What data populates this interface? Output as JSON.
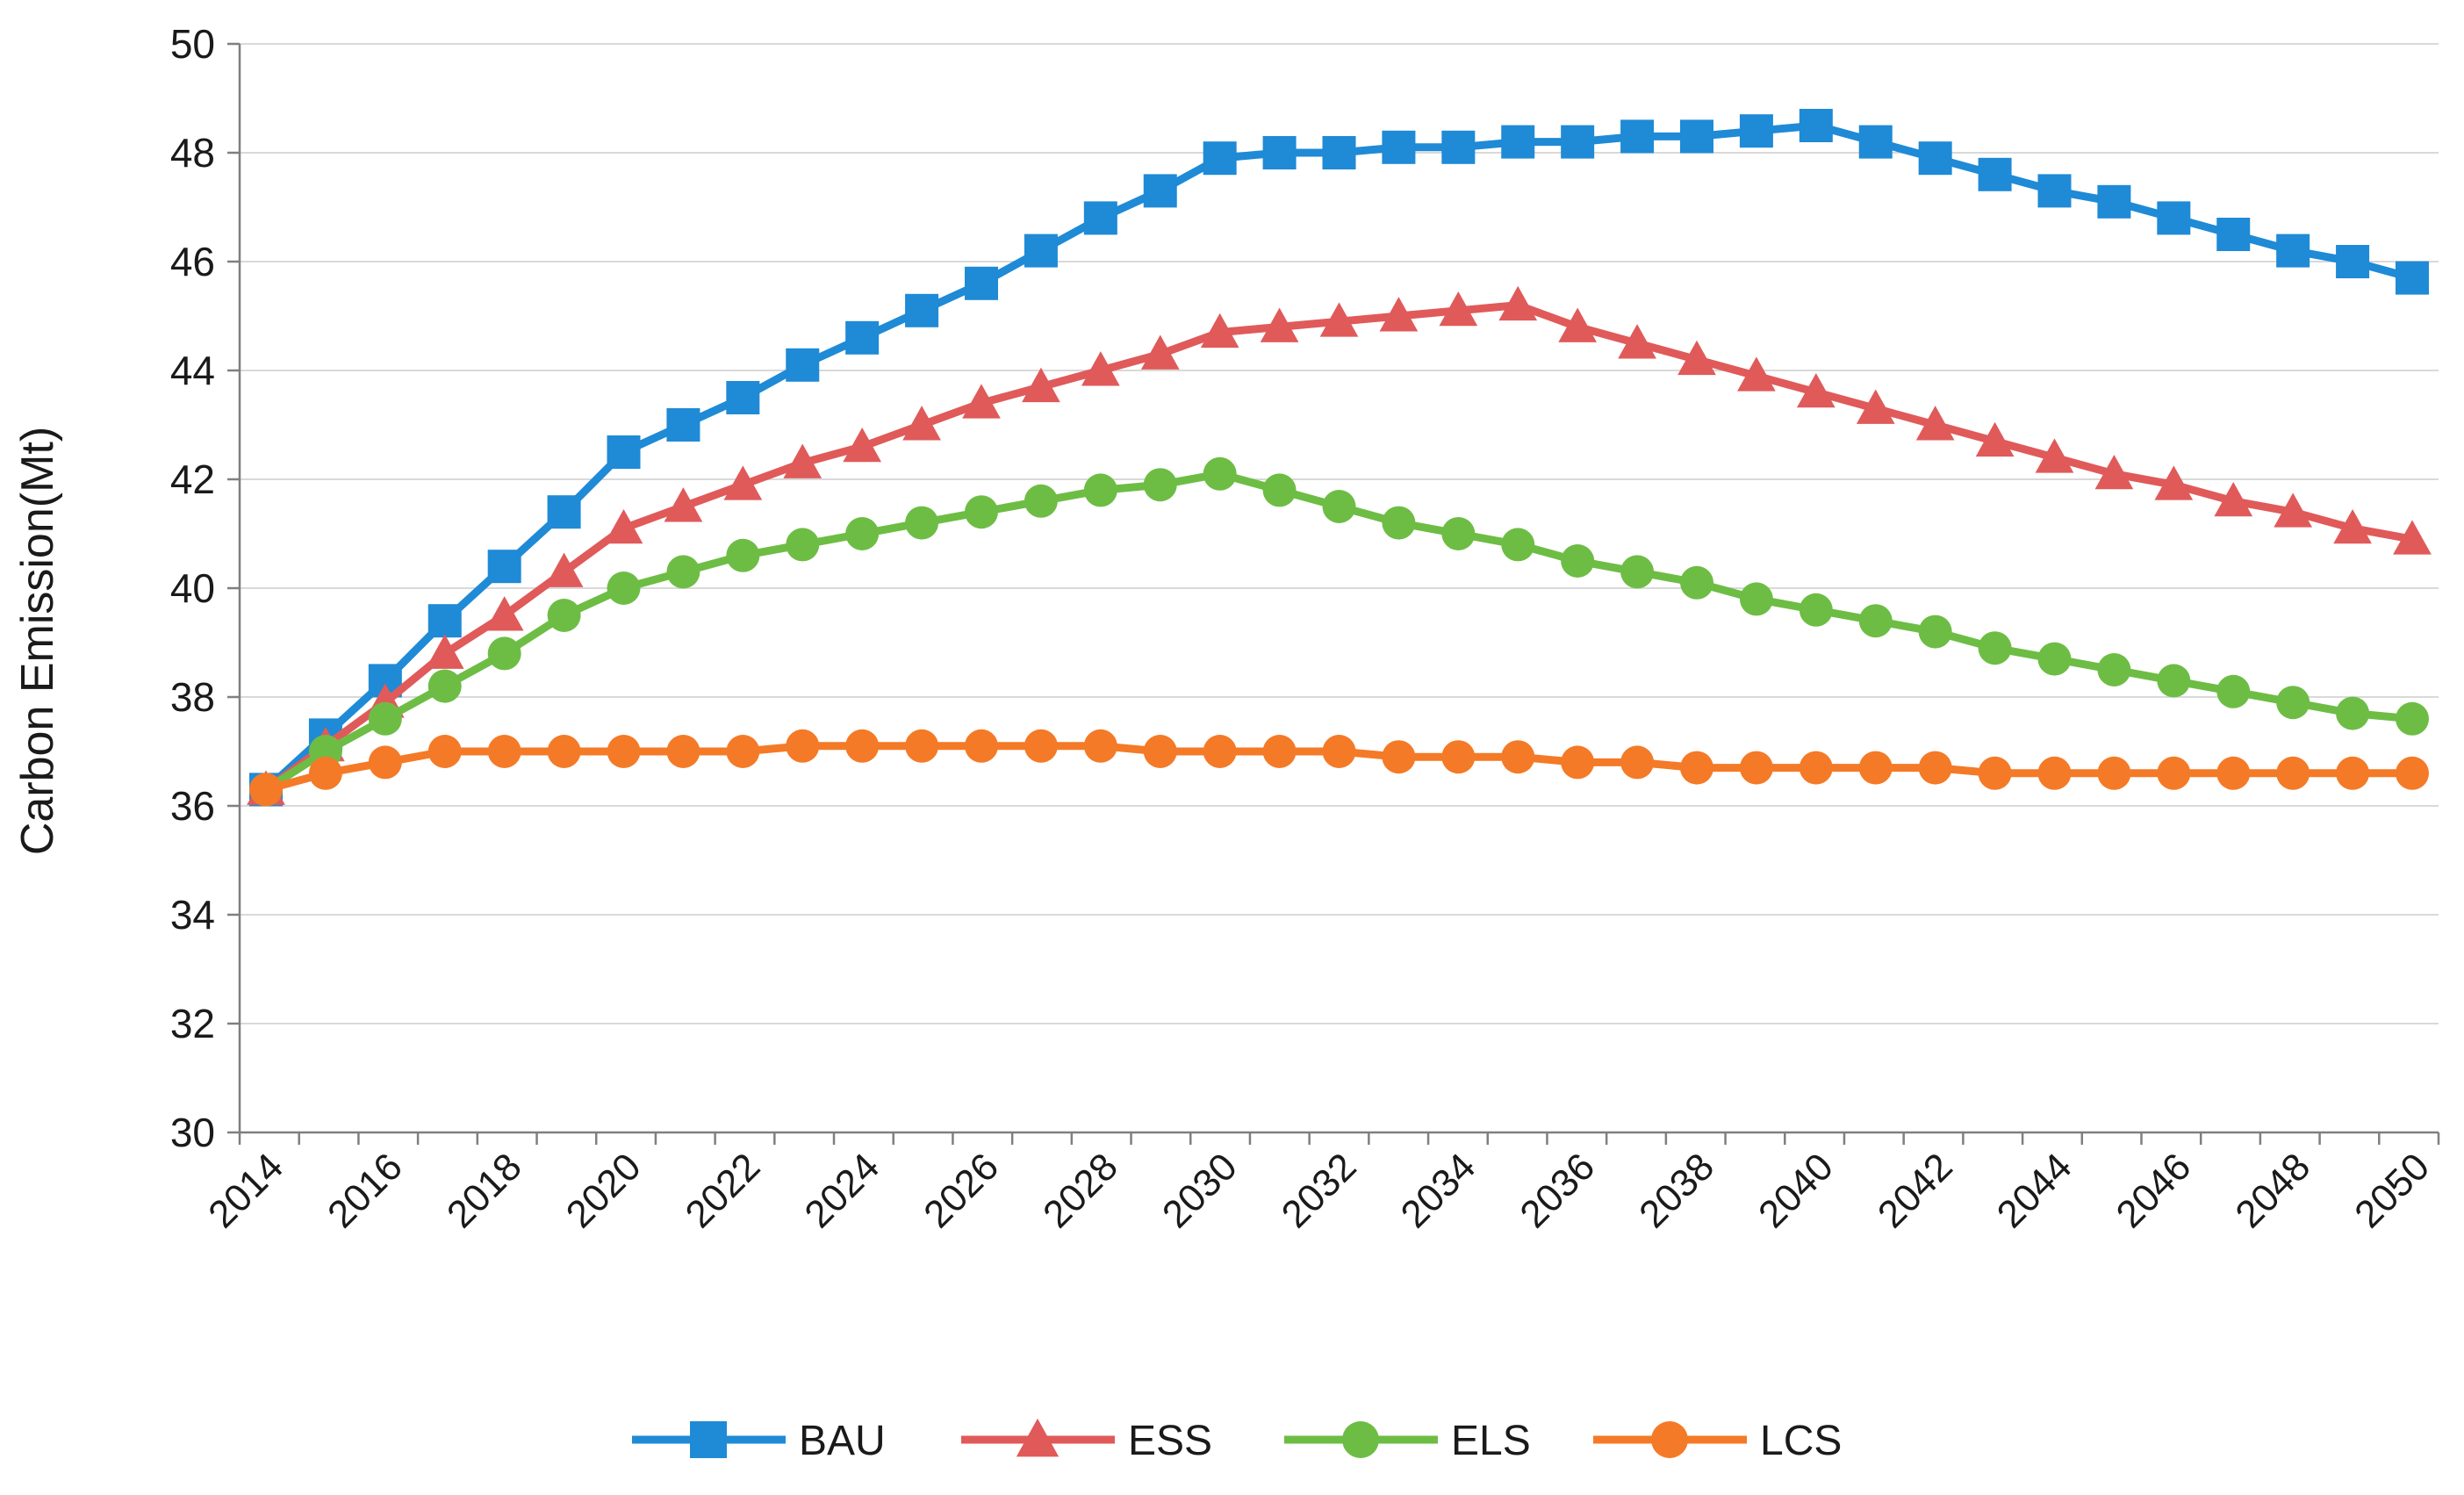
{
  "chart_data": {
    "type": "line",
    "title": "",
    "xlabel": "",
    "ylabel": "Carbon Emission(Mt)",
    "ylim": [
      30,
      50
    ],
    "yticks": [
      30,
      32,
      34,
      36,
      38,
      40,
      42,
      44,
      46,
      48,
      50
    ],
    "xlim": [
      2014,
      2050
    ],
    "xtick_labels": [
      "2014",
      "2016",
      "2018",
      "2020",
      "2022",
      "2024",
      "2026",
      "2028",
      "2030",
      "2032",
      "2034",
      "2036",
      "2038",
      "2040",
      "2042",
      "2044",
      "2046",
      "2048",
      "2050"
    ],
    "grid": "horizontal",
    "legend": "bottom",
    "x": [
      2014,
      2015,
      2016,
      2017,
      2018,
      2019,
      2020,
      2021,
      2022,
      2023,
      2024,
      2025,
      2026,
      2027,
      2028,
      2029,
      2030,
      2031,
      2032,
      2033,
      2034,
      2035,
      2036,
      2037,
      2038,
      2039,
      2040,
      2041,
      2042,
      2043,
      2044,
      2045,
      2046,
      2047,
      2048,
      2049,
      2050
    ],
    "series": [
      {
        "name": "BAU",
        "color": "#1f8ad6",
        "marker": "square",
        "values": [
          36.3,
          37.3,
          38.3,
          39.4,
          40.4,
          41.4,
          42.5,
          43.0,
          43.5,
          44.1,
          44.6,
          45.1,
          45.6,
          46.2,
          46.8,
          47.3,
          47.9,
          48.0,
          48.0,
          48.1,
          48.1,
          48.2,
          48.2,
          48.3,
          48.3,
          48.4,
          48.5,
          48.2,
          47.9,
          47.6,
          47.3,
          47.1,
          46.8,
          46.5,
          46.2,
          46.0,
          45.7
        ]
      },
      {
        "name": "ESS",
        "color": "#e05a5a",
        "marker": "triangle",
        "values": [
          36.3,
          37.1,
          37.9,
          38.8,
          39.5,
          40.3,
          41.1,
          41.5,
          41.9,
          42.3,
          42.6,
          43.0,
          43.4,
          43.7,
          44.0,
          44.3,
          44.7,
          44.8,
          44.9,
          45.0,
          45.1,
          45.2,
          44.8,
          44.5,
          44.2,
          43.9,
          43.6,
          43.3,
          43.0,
          42.7,
          42.4,
          42.1,
          41.9,
          41.6,
          41.4,
          41.1,
          40.9
        ]
      },
      {
        "name": "ELS",
        "color": "#6dbd45",
        "marker": "circle",
        "values": [
          36.3,
          37.0,
          37.6,
          38.2,
          38.8,
          39.5,
          40.0,
          40.3,
          40.6,
          40.8,
          41.0,
          41.2,
          41.4,
          41.6,
          41.8,
          41.9,
          42.1,
          41.8,
          41.5,
          41.2,
          41.0,
          40.8,
          40.5,
          40.3,
          40.1,
          39.8,
          39.6,
          39.4,
          39.2,
          38.9,
          38.7,
          38.5,
          38.3,
          38.1,
          37.9,
          37.7,
          37.6
        ]
      },
      {
        "name": "LCS",
        "color": "#f47a27",
        "marker": "circle",
        "values": [
          36.3,
          36.6,
          36.8,
          37.0,
          37.0,
          37.0,
          37.0,
          37.0,
          37.0,
          37.1,
          37.1,
          37.1,
          37.1,
          37.1,
          37.1,
          37.0,
          37.0,
          37.0,
          37.0,
          36.9,
          36.9,
          36.9,
          36.8,
          36.8,
          36.7,
          36.7,
          36.7,
          36.7,
          36.7,
          36.6,
          36.6,
          36.6,
          36.6,
          36.6,
          36.6,
          36.6,
          36.6
        ]
      }
    ]
  }
}
